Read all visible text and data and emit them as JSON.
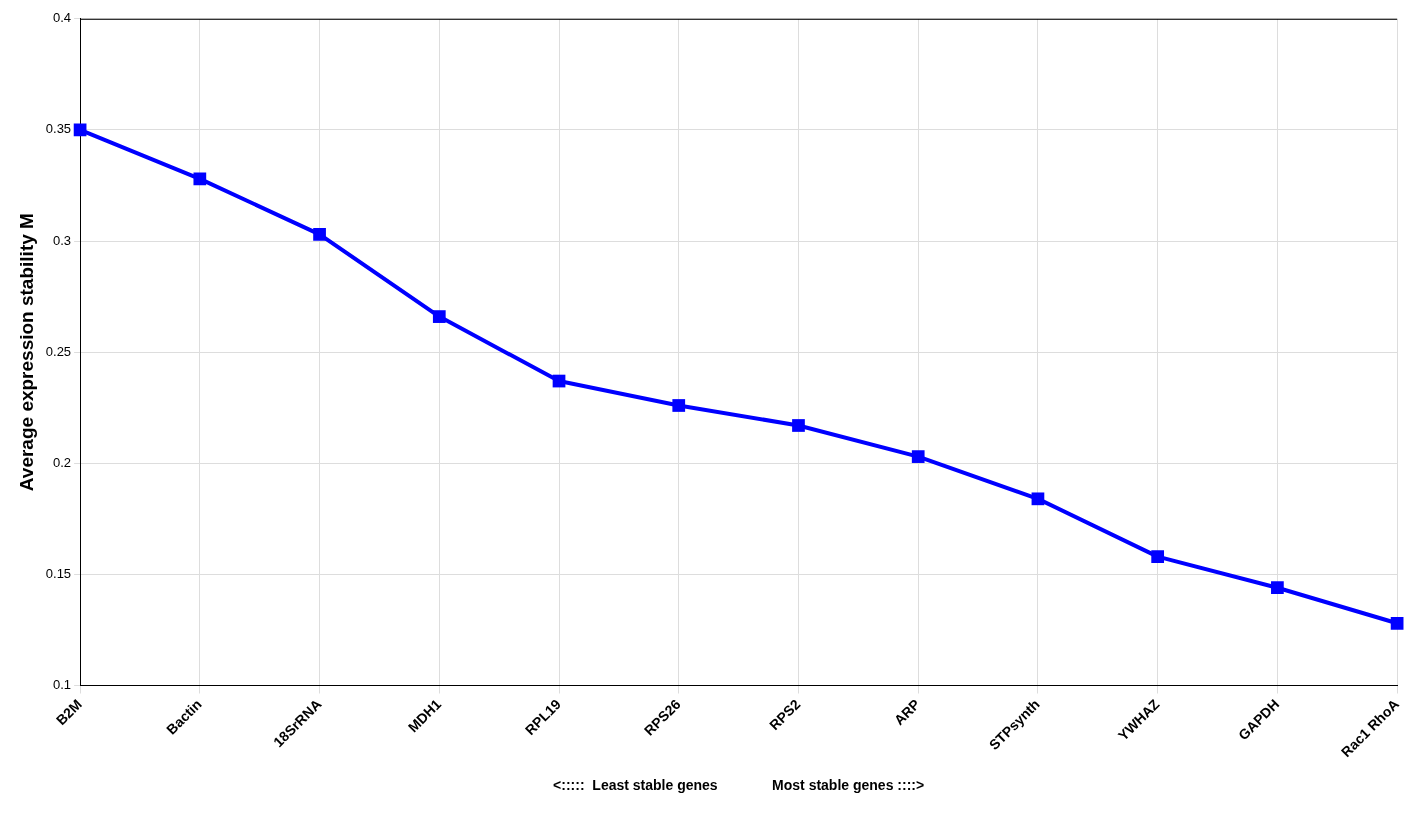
{
  "chart_data": {
    "type": "line",
    "categories": [
      "B2M",
      "Bactin",
      "18SrRNA",
      "MDH1",
      "RPL19",
      "RPS26",
      "RPS2",
      "ARP",
      "STPsynth",
      "YWHAZ",
      "GAPDH",
      "Rac1 RhoA"
    ],
    "series": [
      {
        "color": "#0000ff",
        "values": [
          0.35,
          0.328,
          0.303,
          0.266,
          0.237,
          0.226,
          0.217,
          0.203,
          0.184,
          0.158,
          0.144,
          0.128
        ]
      }
    ],
    "ylabel": "Average expression stability M",
    "xlabel": "<:::::  Least stable genes              Most stable genes ::::>",
    "ylim": [
      0.1,
      0.4
    ],
    "yticks": [
      0.1,
      0.15,
      0.2,
      0.25,
      0.3,
      0.35,
      0.4
    ],
    "grid": true,
    "legend": false,
    "marker": "square",
    "line_style": "solid"
  }
}
